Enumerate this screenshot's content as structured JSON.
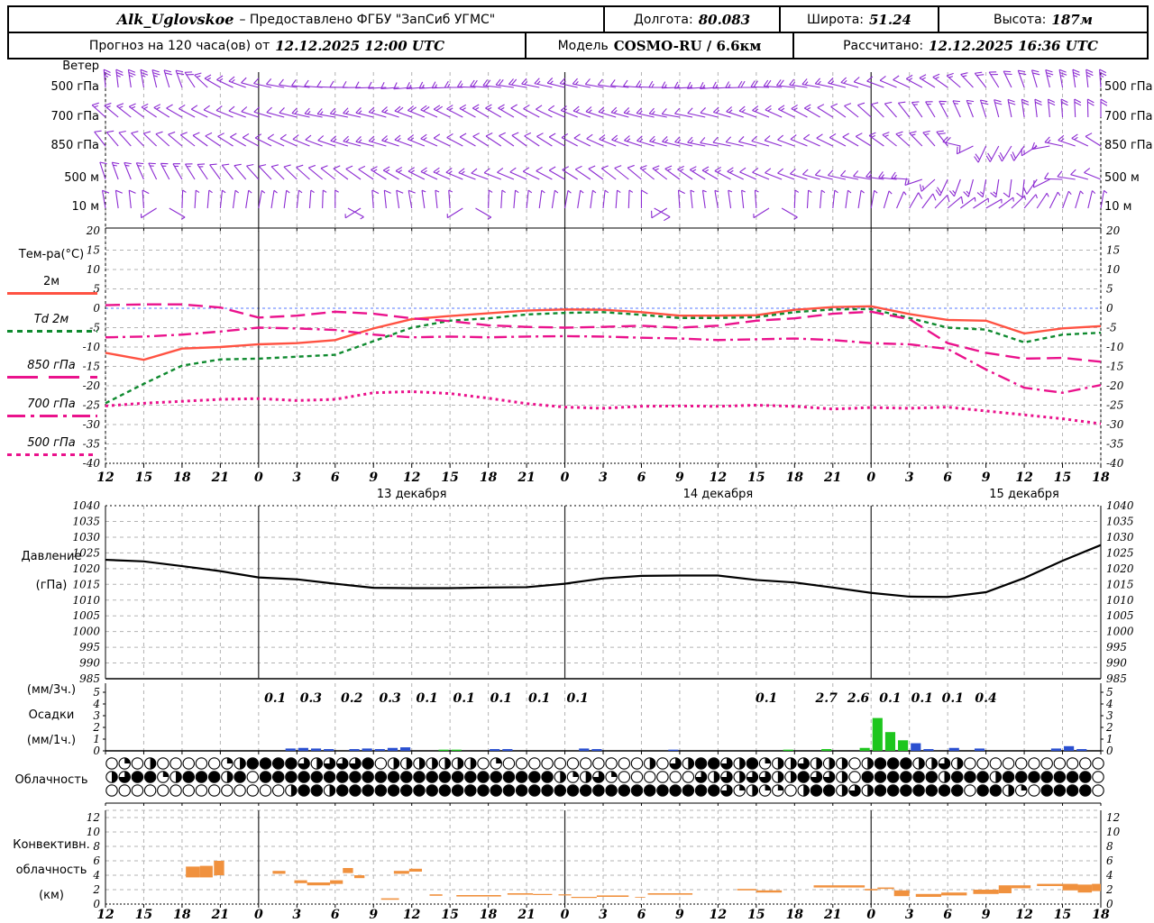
{
  "header": {
    "station": "Alk_Uglovskoe",
    "dash": "–",
    "provider": "Предоставлено ФГБУ \"ЗапСиб УГМС\"",
    "lon_label": "Долгота:",
    "lon": "80.083",
    "lat_label": "Широта:",
    "lat": "51.24",
    "alt_label": "Высота:",
    "alt": "187м",
    "forecast_label": "Прогноз на 120 часа(ов) от",
    "forecast_time": "12.12.2025 12:00 UTC",
    "model_label": "Модель",
    "model": "COSMO-RU / 6.6км",
    "calc_label": "Рассчитано:",
    "calc_time": "12.12.2025 16:36 UTC"
  },
  "labels": {
    "wind_title": "Ветер",
    "wind_levels": [
      "500 гПа",
      "700 гПа",
      "850 гПа",
      "500 м",
      "10 м"
    ],
    "temp_title": "Тем-ра(°C)",
    "temp_legend": [
      "2м",
      "Td 2м",
      "850 гПа",
      "700 гПа",
      "500 гПа"
    ],
    "pressure_1": "Давление",
    "pressure_2": "(гПа)",
    "precip_1": "(мм/3ч.)",
    "precip_2": "Осадки",
    "precip_3": "(мм/1ч.)",
    "cloud": "Облачность",
    "conv_1": "Конвективн.",
    "conv_2": "облачность",
    "conv_3": "(км)"
  },
  "colors": {
    "barb": "#8c2bd2",
    "t2m": "#ff5242",
    "td": "#0f8a2f",
    "iso": "#ea128c",
    "rain": "#2a4fd0",
    "snow": "#1ec61e",
    "conv": "#f0913e",
    "zero": "#5577ff",
    "grid": "#b3b3b3",
    "day": "#222222"
  },
  "chart_data": [
    {
      "type": "wind-barbs",
      "title": "Ветер",
      "x_hours_span": 78,
      "x_tick_step_hours": 3,
      "rows": [
        {
          "level": "500 гПа",
          "y": 97,
          "dirs": [
            355,
            350,
            340,
            300,
            285,
            278,
            272,
            268,
            265,
            268,
            274,
            280,
            284,
            280,
            274,
            268,
            266,
            270,
            276,
            282,
            288,
            295,
            305,
            322,
            340,
            350,
            356
          ],
          "spd": [
            25,
            25,
            20,
            15,
            12,
            10,
            10,
            10,
            12,
            15,
            18,
            18,
            15,
            12,
            12,
            15,
            15,
            18,
            18,
            15,
            12,
            12,
            15,
            18,
            20,
            25,
            25
          ]
        },
        {
          "level": "700 гПа",
          "y": 130,
          "dirs": [
            312,
            306,
            300,
            294,
            288,
            284,
            280,
            284,
            290,
            296,
            300,
            300,
            294,
            288,
            284,
            280,
            284,
            290,
            296,
            302,
            312,
            322,
            332,
            342,
            352,
            356,
            360
          ],
          "spd": [
            15,
            15,
            12,
            10,
            12,
            12,
            15,
            15,
            18,
            18,
            15,
            12,
            12,
            15,
            15,
            12,
            12,
            15,
            15,
            12,
            10,
            12,
            15,
            18,
            20,
            20,
            18
          ]
        },
        {
          "level": "850 гПа",
          "y": 162,
          "dirs": [
            322,
            316,
            310,
            304,
            298,
            294,
            288,
            284,
            290,
            296,
            302,
            306,
            300,
            294,
            288,
            284,
            280,
            284,
            290,
            296,
            302,
            312,
            322,
            205,
            215,
            282,
            302
          ],
          "spd": [
            10,
            10,
            12,
            12,
            10,
            10,
            12,
            15,
            15,
            12,
            12,
            10,
            12,
            12,
            15,
            15,
            12,
            12,
            10,
            10,
            12,
            15,
            18,
            20,
            18,
            15,
            12
          ]
        },
        {
          "level": "500 м",
          "y": 199,
          "dirs": [
            342,
            336,
            330,
            324,
            318,
            314,
            308,
            304,
            298,
            294,
            290,
            294,
            300,
            306,
            310,
            306,
            300,
            294,
            290,
            284,
            280,
            274,
            205,
            190,
            186,
            272,
            292
          ],
          "spd": [
            12,
            15,
            15,
            12,
            10,
            10,
            12,
            12,
            15,
            15,
            12,
            10,
            10,
            12,
            12,
            15,
            15,
            12,
            10,
            10,
            12,
            15,
            18,
            15,
            10,
            10,
            12
          ]
        },
        {
          "level": "10 м",
          "y": 231,
          "dirs": [
            350,
            356,
            2,
            6,
            10,
            6,
            0,
            356,
            350,
            356,
            2,
            6,
            10,
            6,
            0,
            356,
            350,
            356,
            2,
            6,
            10,
            30,
            50,
            60,
            40,
            20,
            10
          ],
          "spd": [
            8,
            8,
            6,
            6,
            5,
            5,
            6,
            8,
            8,
            6,
            5,
            5,
            6,
            6,
            8,
            8,
            6,
            5,
            5,
            6,
            6,
            8,
            8,
            6,
            5,
            5,
            6
          ]
        }
      ]
    },
    {
      "type": "line",
      "title": "Тем-ра(°C)",
      "ylim": [
        -40,
        20
      ],
      "y_tick_step": 5,
      "x_step_hours": 3,
      "x_tick_labels": [
        "12",
        "15",
        "18",
        "21",
        "0",
        "3",
        "6",
        "9",
        "12",
        "15",
        "18",
        "21",
        "0",
        "3",
        "6",
        "9",
        "12",
        "15",
        "18",
        "21",
        "0",
        "3",
        "6",
        "9",
        "12",
        "15",
        "18"
      ],
      "date_labels": [
        {
          "h": 24,
          "label": "13 декабря"
        },
        {
          "h": 48,
          "label": "14 декабря"
        },
        {
          "h": 72,
          "label": "15 декабря"
        }
      ],
      "series": [
        {
          "name": "T 2м",
          "style": "solid",
          "color_key": "t2m",
          "values": [
            -11.5,
            -13.3,
            -10.4,
            -10.0,
            -9.3,
            -9.0,
            -8.2,
            -5.2,
            -2.8,
            -2.0,
            -1.3,
            -0.6,
            -0.3,
            -0.4,
            -1.0,
            -1.9,
            -1.9,
            -1.8,
            -0.4,
            0.3,
            0.5,
            -1.5,
            -3.0,
            -3.2,
            -6.5,
            -5.2,
            -4.6
          ]
        },
        {
          "name": "Td 2м",
          "style": "dashed",
          "color_key": "td",
          "values": [
            -24.5,
            -19.5,
            -14.8,
            -13.2,
            -13.0,
            -12.5,
            -12.0,
            -8.5,
            -5.0,
            -3.2,
            -2.6,
            -1.6,
            -1.2,
            -1.0,
            -1.7,
            -2.5,
            -2.5,
            -2.3,
            -1.0,
            -0.3,
            -0.2,
            -2.5,
            -5.0,
            -5.5,
            -8.8,
            -6.8,
            -6.3
          ]
        },
        {
          "name": "T 850 гПа",
          "style": "longdash",
          "color_key": "iso",
          "values": [
            0.8,
            1.0,
            1.0,
            0.2,
            -2.4,
            -1.9,
            -0.9,
            -1.4,
            -2.6,
            -3.3,
            -4.4,
            -4.8,
            -5.0,
            -4.8,
            -4.5,
            -5.0,
            -4.5,
            -3.2,
            -2.6,
            -1.4,
            -0.9,
            -2.8,
            -9.0,
            -11.5,
            -13.0,
            -12.8,
            -13.8
          ]
        },
        {
          "name": "T 700 гПа",
          "style": "dashdot",
          "color_key": "iso",
          "values": [
            -7.5,
            -7.3,
            -6.8,
            -6.0,
            -5.0,
            -5.2,
            -5.6,
            -6.8,
            -7.5,
            -7.3,
            -7.5,
            -7.3,
            -7.2,
            -7.3,
            -7.6,
            -7.8,
            -8.2,
            -8.0,
            -7.8,
            -8.2,
            -9.0,
            -9.3,
            -10.5,
            -15.8,
            -20.5,
            -21.8,
            -19.8
          ]
        },
        {
          "name": "T 500 гПа",
          "style": "dot",
          "color_key": "iso",
          "values": [
            -25.2,
            -24.5,
            -24.0,
            -23.5,
            -23.3,
            -23.8,
            -23.5,
            -21.8,
            -21.5,
            -22.0,
            -23.2,
            -24.6,
            -25.5,
            -25.8,
            -25.3,
            -25.2,
            -25.3,
            -25.0,
            -25.3,
            -26.0,
            -25.6,
            -25.8,
            -25.5,
            -26.5,
            -27.5,
            -28.5,
            -29.8
          ]
        }
      ]
    },
    {
      "type": "line",
      "title": "Давление (гПа)",
      "ylim": [
        985,
        1040
      ],
      "y_tick_step": 5,
      "x_step_hours": 3,
      "series": [
        {
          "name": "Давление",
          "style": "solid",
          "color": "#000000",
          "values": [
            1022.8,
            1022.3,
            1020.8,
            1019.2,
            1017.2,
            1016.6,
            1015.2,
            1013.9,
            1013.8,
            1013.8,
            1014.0,
            1014.1,
            1015.2,
            1016.9,
            1017.7,
            1017.8,
            1017.8,
            1016.4,
            1015.6,
            1014.0,
            1012.3,
            1011.1,
            1011.0,
            1012.5,
            1017.0,
            1022.5,
            1027.5
          ]
        }
      ]
    },
    {
      "type": "bar",
      "title": "Осадки (мм/3ч.) (мм/1ч.)",
      "ylim": [
        0,
        5
      ],
      "sum3h_labels": [
        [
          13.3,
          "0.1"
        ],
        [
          16.1,
          "0.3"
        ],
        [
          19.3,
          "0.2"
        ],
        [
          22.3,
          "0.3"
        ],
        [
          25.2,
          "0.1"
        ],
        [
          28.1,
          "0.1"
        ],
        [
          31,
          "0.1"
        ],
        [
          34,
          "0.1"
        ],
        [
          37,
          "0.1"
        ],
        [
          51.8,
          "0.1"
        ],
        [
          56.5,
          "2.7"
        ],
        [
          59,
          "2.6"
        ],
        [
          61.5,
          "0.1"
        ],
        [
          64,
          "0.1"
        ],
        [
          66.4,
          "0.1"
        ],
        [
          69,
          "0.4"
        ]
      ],
      "bars_hourly": [
        [
          14,
          0.2,
          "b"
        ],
        [
          15,
          0.25,
          "b"
        ],
        [
          16,
          0.2,
          "b"
        ],
        [
          17,
          0.15,
          "b"
        ],
        [
          19,
          0.15,
          "b"
        ],
        [
          20,
          0.2,
          "b"
        ],
        [
          21,
          0.15,
          "b"
        ],
        [
          22,
          0.25,
          "b"
        ],
        [
          23,
          0.3,
          "b"
        ],
        [
          26,
          0.1,
          "g"
        ],
        [
          27,
          0.1,
          "g"
        ],
        [
          30,
          0.15,
          "b"
        ],
        [
          31,
          0.15,
          "b"
        ],
        [
          37,
          0.2,
          "b"
        ],
        [
          38,
          0.15,
          "b"
        ],
        [
          44,
          0.1,
          "b"
        ],
        [
          53,
          0.1,
          "g"
        ],
        [
          56,
          0.15,
          "g"
        ],
        [
          59,
          0.25,
          "g"
        ],
        [
          60,
          2.8,
          "g"
        ],
        [
          61,
          1.6,
          "g"
        ],
        [
          62,
          0.9,
          "g"
        ],
        [
          63,
          0.65,
          "b"
        ],
        [
          64,
          0.15,
          "b"
        ],
        [
          66,
          0.25,
          "b"
        ],
        [
          68,
          0.2,
          "b"
        ],
        [
          74,
          0.2,
          "b"
        ],
        [
          75,
          0.4,
          "b"
        ],
        [
          76,
          0.15,
          "b"
        ]
      ]
    },
    {
      "type": "cloud-symbols",
      "title": "Облачность",
      "note": "three rows of hourly cloud-cover circles, fill in quarters 0-4",
      "rows": [
        "010200000124444323334022222220100000000000203244324122322202444223200000000000",
        "234412444240444444444444444444444442123100000032323322433204444442444244444440",
        "000000000000002442444444444444444444444444444444312110244232444444404421044440"
      ]
    },
    {
      "type": "bar",
      "title": "Конвективная облачность (км)",
      "ylim": [
        0,
        13
      ],
      "y_tick_step": 2,
      "x_tick_labels": [
        "12",
        "15",
        "18",
        "21",
        "0",
        "3",
        "6",
        "9",
        "12",
        "15",
        "18",
        "21",
        "0",
        "3",
        "6",
        "9",
        "12",
        "15",
        "18",
        "21",
        "0",
        "3",
        "6",
        "9",
        "12",
        "15",
        "18"
      ],
      "bars_layers": [
        [
          6.3,
          7.4,
          3.7,
          5.2
        ],
        [
          7.4,
          8.4,
          3.7,
          5.3
        ],
        [
          8.5,
          9.3,
          4.0,
          6.0
        ],
        [
          13.1,
          14.1,
          4.2,
          4.6
        ],
        [
          14.8,
          15.8,
          2.9,
          3.3
        ],
        [
          15.8,
          17.6,
          2.6,
          3.0
        ],
        [
          17.6,
          18.6,
          2.8,
          3.3
        ],
        [
          18.6,
          19.4,
          4.3,
          5.0
        ],
        [
          19.5,
          20.3,
          3.6,
          4.0
        ],
        [
          21.6,
          23.0,
          0.6,
          0.8
        ],
        [
          22.6,
          23.8,
          4.2,
          4.6
        ],
        [
          23.8,
          24.8,
          4.5,
          4.9
        ],
        [
          25.4,
          26.4,
          1.15,
          1.35
        ],
        [
          27.5,
          31.0,
          1.05,
          1.25
        ],
        [
          31.5,
          33.5,
          1.3,
          1.5
        ],
        [
          33.5,
          35.0,
          1.25,
          1.4
        ],
        [
          35.5,
          36.5,
          1.2,
          1.35
        ],
        [
          36.5,
          38.5,
          0.85,
          1.0
        ],
        [
          38.5,
          41.0,
          1.0,
          1.2
        ],
        [
          41.5,
          42.3,
          0.9,
          1.0
        ],
        [
          42.5,
          46.0,
          1.3,
          1.5
        ],
        [
          49.5,
          51.0,
          1.9,
          2.1
        ],
        [
          51.0,
          53.0,
          1.6,
          1.9
        ],
        [
          55.5,
          59.5,
          2.3,
          2.6
        ],
        [
          59.5,
          60.5,
          1.9,
          2.1
        ],
        [
          60.5,
          61.8,
          2.1,
          2.3
        ],
        [
          61.8,
          63.0,
          1.1,
          1.9
        ],
        [
          63.5,
          65.5,
          1.0,
          1.4
        ],
        [
          65.5,
          67.5,
          1.2,
          1.6
        ],
        [
          68.0,
          70.0,
          1.4,
          2.0
        ],
        [
          70.0,
          71.0,
          1.5,
          2.6
        ],
        [
          71.0,
          72.5,
          2.2,
          2.6
        ],
        [
          73.0,
          75.0,
          2.5,
          2.8
        ],
        [
          75.0,
          76.2,
          1.9,
          2.8
        ],
        [
          76.2,
          77.3,
          1.6,
          2.7
        ],
        [
          77.3,
          78.0,
          1.8,
          2.8
        ]
      ]
    }
  ]
}
